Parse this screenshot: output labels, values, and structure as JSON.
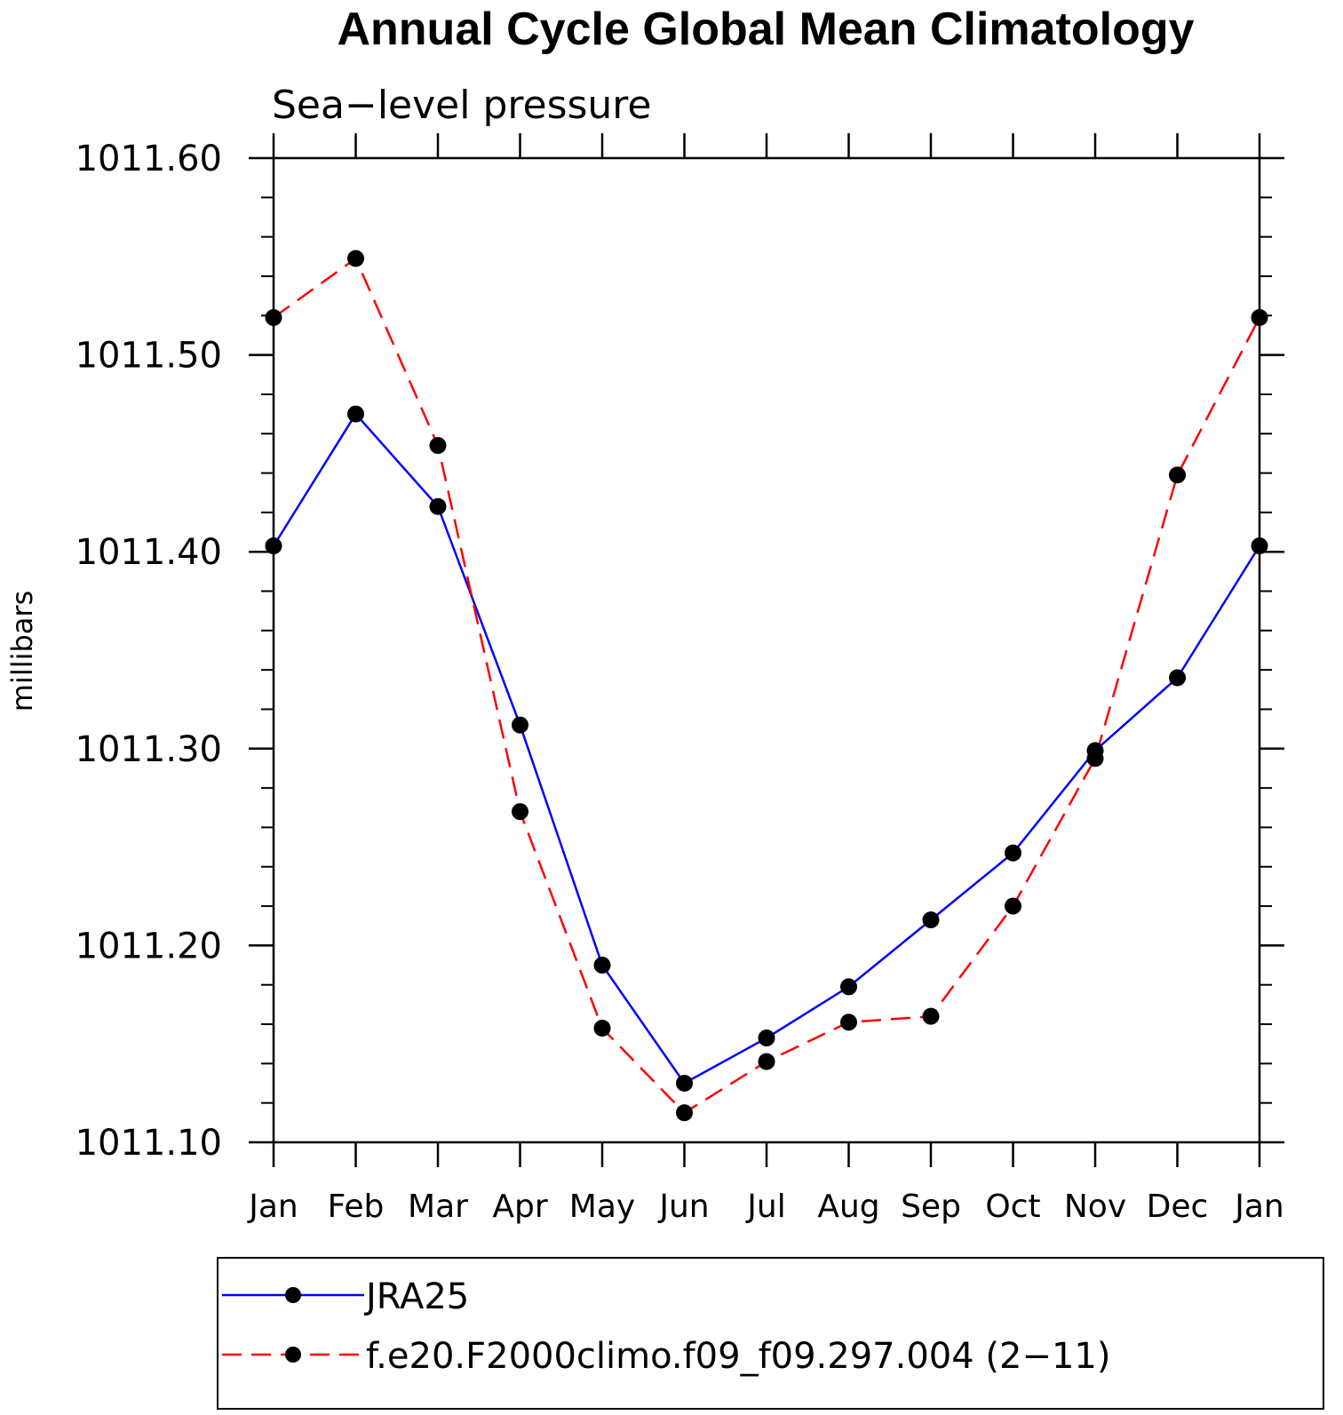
{
  "chart_data": {
    "type": "line",
    "title": "Annual Cycle Global Mean Climatology",
    "subtitle": "Sea−level pressure",
    "xlabel": "",
    "ylabel": "millibars",
    "ylim": [
      1011.1,
      1011.6
    ],
    "yticks": [
      1011.1,
      1011.2,
      1011.3,
      1011.4,
      1011.5,
      1011.6
    ],
    "ytick_labels": [
      "1011.10",
      "1011.20",
      "1011.30",
      "1011.40",
      "1011.50",
      "1011.60"
    ],
    "categories": [
      "Jan",
      "Feb",
      "Mar",
      "Apr",
      "May",
      "Jun",
      "Jul",
      "Aug",
      "Sep",
      "Oct",
      "Nov",
      "Dec",
      "Jan"
    ],
    "series": [
      {
        "name": "JRA25",
        "color": "#0000ff",
        "style": "solid",
        "values": [
          1011.403,
          1011.47,
          1011.423,
          1011.312,
          1011.19,
          1011.13,
          1011.153,
          1011.179,
          1011.213,
          1011.247,
          1011.299,
          1011.336,
          1011.403
        ]
      },
      {
        "name": "f.e20.F2000climo.f09_f09.297.004 (2−11)",
        "color": "#ff0000",
        "style": "dashed",
        "values": [
          1011.519,
          1011.549,
          1011.454,
          1011.268,
          1011.158,
          1011.115,
          1011.141,
          1011.161,
          1011.164,
          1011.22,
          1011.295,
          1011.439,
          1011.519
        ]
      }
    ],
    "marker": "filled-circle",
    "marker_color": "#000000",
    "legend_position": "bottom"
  }
}
